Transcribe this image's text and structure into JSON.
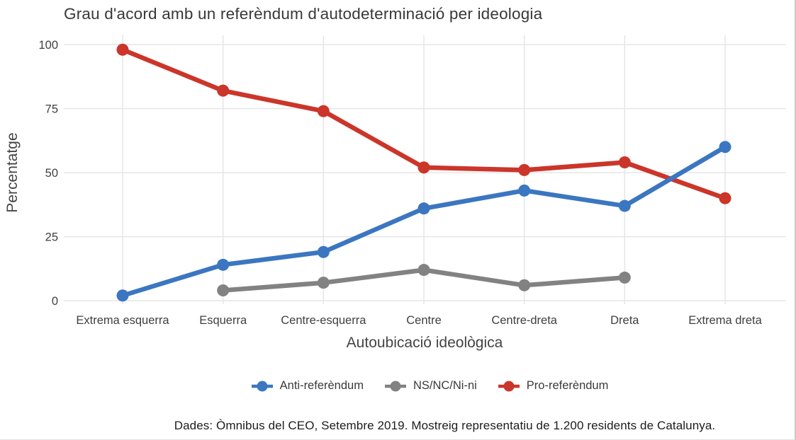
{
  "title": "Grau d'acord amb un referèndum d'autodeterminació per ideologia",
  "caption": "Dades: Òmnibus del CEO, Setembre 2019. Mostreig representatiu de 1.200 residents de Catalunya.",
  "colors": {
    "anti": "#3b76c1",
    "nsnc": "#828282",
    "pro": "#cb352a",
    "grid": "#e6e6e6",
    "tick_text": "#3f3f3f",
    "axis_title_text": "#444444"
  },
  "chart_data": {
    "type": "line",
    "title": "Grau d'acord amb un referèndum d'autodeterminació per ideologia",
    "xlabel": "Autoubicació ideològica",
    "ylabel": "Percentatge",
    "categories": [
      "Extrema esquerra",
      "Esquerra",
      "Centre-esquerra",
      "Centre",
      "Centre-dreta",
      "Dreta",
      "Extrema dreta"
    ],
    "yticks": [
      0,
      25,
      50,
      75,
      100
    ],
    "ylim": [
      0,
      100
    ],
    "grid": true,
    "legend_position": "bottom",
    "series": [
      {
        "name": "Anti-referèndum",
        "color": "#3b76c1",
        "values": [
          2,
          14,
          19,
          36,
          43,
          37,
          60
        ]
      },
      {
        "name": "NS/NC/Ni-ni",
        "color": "#828282",
        "values": [
          null,
          4,
          7,
          12,
          6,
          9,
          null
        ]
      },
      {
        "name": "Pro-referèndum",
        "color": "#cb352a",
        "values": [
          98,
          82,
          74,
          52,
          51,
          54,
          40
        ]
      }
    ]
  }
}
